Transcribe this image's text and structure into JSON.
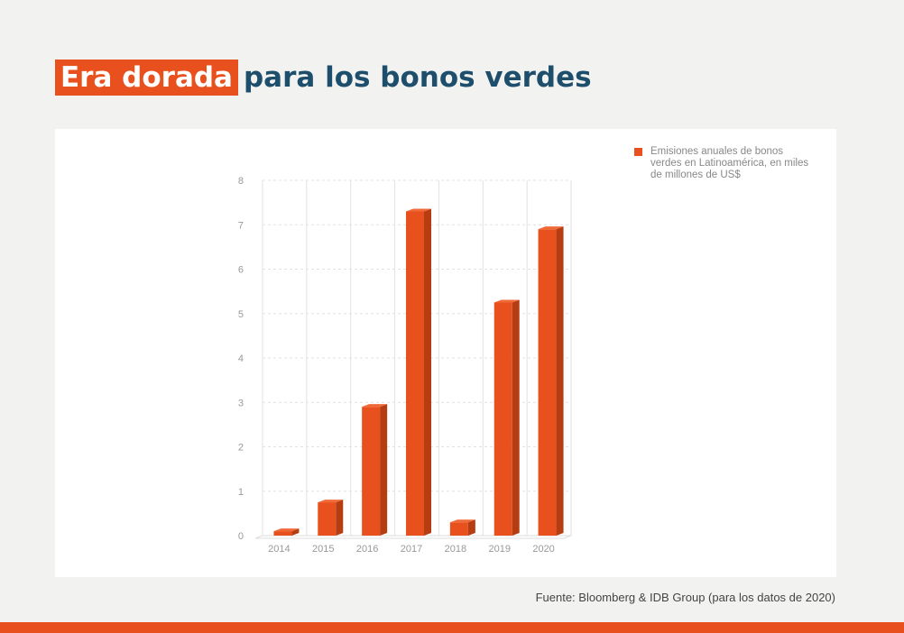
{
  "title": {
    "highlight": "Era dorada",
    "rest": "para los bonos verdes"
  },
  "source": "Fuente: Bloomberg & IDB Group (para los datos de 2020)",
  "colors": {
    "accent": "#e8511e",
    "accent_dark": "#b63c12",
    "title_blue": "#1d4e6b"
  },
  "chart_data": {
    "type": "bar",
    "categories": [
      "2014",
      "2015",
      "2016",
      "2017",
      "2018",
      "2019",
      "2020"
    ],
    "series": [
      {
        "name": "Emisiones anuales de bonos verdes en Latinoamérica, en miles de millones de US$",
        "values": [
          0.1,
          0.75,
          2.9,
          7.3,
          0.3,
          5.25,
          6.9
        ]
      }
    ],
    "yticks": [
      "0",
      "1",
      "2",
      "3",
      "4",
      "5",
      "6",
      "7",
      "8"
    ],
    "ylim": [
      0,
      8
    ],
    "grid": true,
    "legend": "top-right"
  }
}
